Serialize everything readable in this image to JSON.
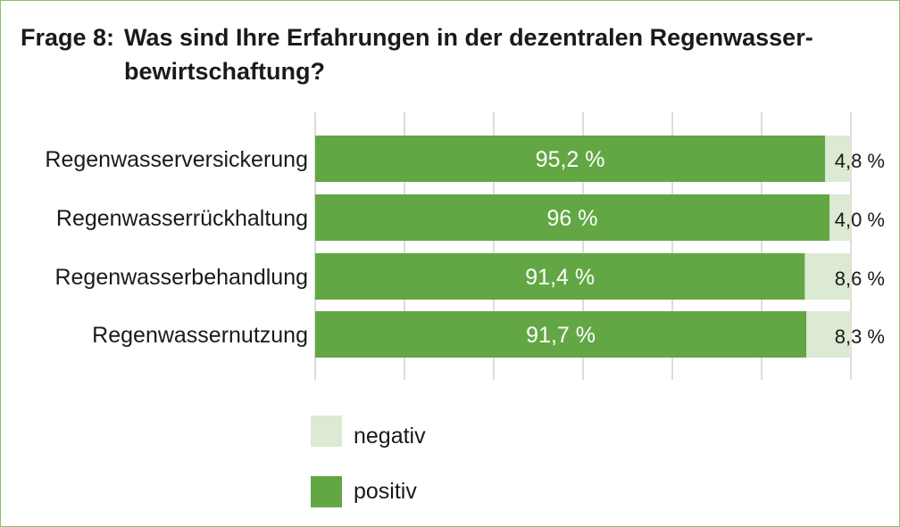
{
  "title": {
    "prefix": "Frage 8:",
    "line1": "Was sind Ihre Erfahrungen in der dezentralen Regenwasser-",
    "line2": "bewirtschaftung?"
  },
  "colors": {
    "positive": "#62a744",
    "negative": "#dce9d3",
    "grid": "#d0d0d0",
    "border": "#8cc06a",
    "text": "#1a1a1a"
  },
  "chart_data": {
    "type": "bar",
    "orientation": "horizontal",
    "stacked": true,
    "categories": [
      "Regenwasserversickerung",
      "Regenwasserrückhaltung",
      "Regenwasserbehandlung",
      "Regenwassernutzung"
    ],
    "series": [
      {
        "name": "positiv",
        "values": [
          95.2,
          96,
          91.4,
          91.7
        ],
        "labels": [
          "95,2 %",
          "96 %",
          "91,4 %",
          "91,7 %"
        ]
      },
      {
        "name": "negativ",
        "values": [
          4.8,
          4.0,
          8.6,
          8.3
        ],
        "labels": [
          "4,8 %",
          "4,0 %",
          "8,6 %",
          "8,3 %"
        ]
      }
    ],
    "xlim": [
      0,
      100
    ],
    "grid": true
  },
  "legend": [
    {
      "key": "negative",
      "label": "negativ"
    },
    {
      "key": "positive",
      "label": "positiv"
    }
  ]
}
